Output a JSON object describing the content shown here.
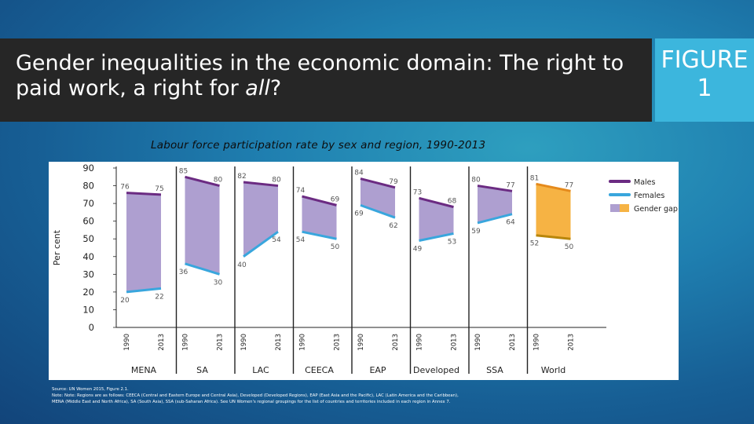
{
  "slide": {
    "title": "Gender inequalities in the economic domain: The right to paid work, a right for all?",
    "title_main": "Gender inequalities in the economic domain: The right to paid work, a right for ",
    "title_emph": "all",
    "title_end": "?",
    "figure_label_line1": "FIGURE",
    "figure_label_line2": "1",
    "chart_title": "Labour force participation rate by sex and region, 1990-2013",
    "source": "Source: UN Women 2015, Figure 2.1.",
    "note": "Note: Note: Regions are as follows: CEECA (Central and Eastern Europe and Central Asia), Developed (Developed Regions), EAP (East Asia and the Pacific), LAC (Latin America and the Caribbean),",
    "note2": "MENA (Middle East and North Africa), SA (South Asia), SSA (sub-Saharan Africa). See UN Women's regional groupings for the list of countries and territories included in each region in Annex 7."
  },
  "colors": {
    "males": "#6b2b82",
    "females": "#39a6dd",
    "gap_fill": "#a08ec8",
    "gap_fill_world": "#f5a623",
    "males_world": "#e58a1c",
    "axis": "#222222",
    "label": "#555555"
  },
  "chart_data": {
    "type": "area",
    "title": "Labour force participation rate by sex and region, 1990-2013",
    "ylabel": "Per cent",
    "xlabel": "",
    "ylim": [
      0,
      90
    ],
    "yticks": [
      0,
      10,
      20,
      30,
      40,
      50,
      60,
      70,
      80,
      90
    ],
    "legend": {
      "position": "top-right",
      "items": [
        "Males",
        "Females",
        "Gender gap"
      ]
    },
    "x_tick_labels": [
      "1990",
      "2013"
    ],
    "regions": [
      {
        "name": "MENA",
        "males": [
          76,
          75
        ],
        "females": [
          20,
          22
        ],
        "males_labels": [
          "76",
          "75"
        ],
        "females_labels": [
          "20",
          "22"
        ]
      },
      {
        "name": "SA",
        "males": [
          85,
          80
        ],
        "females": [
          36,
          30
        ],
        "males_labels": [
          "85",
          "80"
        ],
        "females_labels": [
          "36",
          "30"
        ]
      },
      {
        "name": "LAC",
        "males": [
          82,
          80
        ],
        "females": [
          40,
          54
        ],
        "males_labels": [
          "82",
          "80"
        ],
        "females_labels": [
          "40",
          "54"
        ]
      },
      {
        "name": "CEECA",
        "males": [
          74,
          69
        ],
        "females": [
          54,
          50
        ],
        "males_labels": [
          "74",
          "69"
        ],
        "females_labels": [
          "54",
          "50"
        ]
      },
      {
        "name": "EAP",
        "males": [
          84,
          79
        ],
        "females": [
          69,
          62
        ],
        "males_labels": [
          "84",
          "79"
        ],
        "females_labels": [
          "69",
          "62"
        ]
      },
      {
        "name": "Developed",
        "males": [
          73,
          68
        ],
        "females": [
          49,
          53
        ],
        "males_labels": [
          "73",
          "68"
        ],
        "females_labels": [
          "49",
          "53"
        ]
      },
      {
        "name": "SSA",
        "males": [
          80,
          77
        ],
        "females": [
          59,
          64
        ],
        "males_labels": [
          "80",
          "77"
        ],
        "females_labels": [
          "59",
          "64"
        ]
      },
      {
        "name": "World",
        "males": [
          81,
          77
        ],
        "females": [
          52,
          50
        ],
        "males_labels": [
          "81",
          "77"
        ],
        "females_labels": [
          "52",
          "50"
        ]
      }
    ]
  }
}
